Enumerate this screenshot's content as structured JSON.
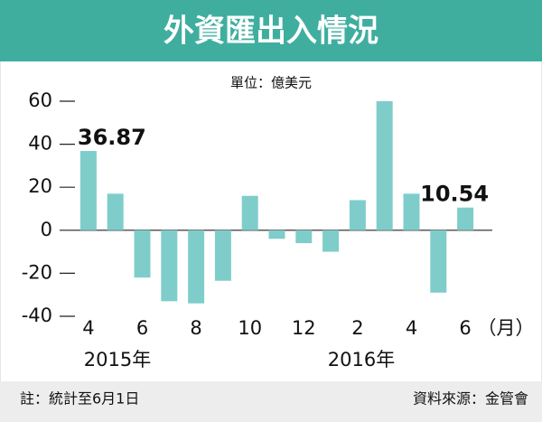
{
  "chart_data": {
    "type": "bar",
    "title": "外資匯出入情況",
    "subtitle": "單位：億美元",
    "categories": [
      "4",
      null,
      "6",
      null,
      "8",
      null,
      "10",
      null,
      "12",
      null,
      "2",
      null,
      "4",
      null,
      "6"
    ],
    "values": [
      36.87,
      17,
      -22,
      -33,
      -34,
      -23.5,
      16,
      -4,
      -6,
      -10,
      14,
      60,
      17,
      -29,
      10.54
    ],
    "value_labels": [
      "36.87",
      null,
      null,
      null,
      null,
      null,
      null,
      null,
      null,
      null,
      null,
      null,
      null,
      null,
      "10.54"
    ],
    "x_unit": "（月）",
    "year_labels": [
      "2015年",
      "2016年"
    ],
    "color": "#7fcdca",
    "ylim": [
      -40,
      60
    ],
    "yticks": [
      -40,
      -20,
      0,
      20,
      40,
      60
    ],
    "note": "註：統計至6月1日",
    "source": "資料來源：金管會"
  }
}
